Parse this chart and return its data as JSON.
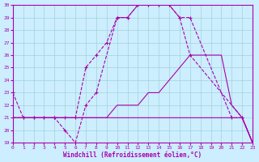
{
  "xlabel": "Windchill (Refroidissement éolien,°C)",
  "xlim": [
    0,
    23
  ],
  "ylim": [
    19,
    30
  ],
  "yticks": [
    19,
    20,
    21,
    22,
    23,
    24,
    25,
    26,
    27,
    28,
    29,
    30
  ],
  "xticks": [
    0,
    1,
    2,
    3,
    4,
    5,
    6,
    7,
    8,
    9,
    10,
    11,
    12,
    13,
    14,
    15,
    16,
    17,
    18,
    19,
    20,
    21,
    22,
    23
  ],
  "background_color": "#cceeff",
  "line_color": "#aa00aa",
  "line1_x": [
    0,
    1,
    2,
    3,
    4,
    5,
    6,
    7,
    8,
    10,
    11,
    12,
    13,
    14,
    15,
    16,
    17,
    21,
    22,
    23
  ],
  "line1_y": [
    23,
    21,
    21,
    21,
    21,
    20,
    19,
    22,
    23,
    29,
    29,
    30,
    30,
    30,
    30,
    29,
    29,
    21,
    21,
    19
  ],
  "line2_x": [
    0,
    1,
    2,
    3,
    4,
    5,
    6,
    7,
    8,
    9,
    10,
    11,
    12,
    13,
    14,
    15,
    16,
    17,
    22,
    23
  ],
  "line2_y": [
    21,
    21,
    21,
    21,
    21,
    21,
    21,
    25,
    26,
    27,
    29,
    29,
    30,
    30,
    30,
    30,
    29,
    26,
    21,
    19
  ],
  "line3_x": [
    0,
    1,
    2,
    3,
    4,
    5,
    6,
    7,
    8,
    9,
    10,
    11,
    12,
    13,
    14,
    15,
    16,
    17,
    18,
    19,
    20,
    21,
    22,
    23
  ],
  "line3_y": [
    21,
    21,
    21,
    21,
    21,
    21,
    21,
    21,
    21,
    21,
    22,
    22,
    22,
    23,
    23,
    24,
    25,
    26,
    26,
    26,
    26,
    22,
    21,
    19
  ],
  "line4_x": [
    0,
    1,
    2,
    3,
    4,
    5,
    6,
    7,
    8,
    9,
    10,
    11,
    12,
    13,
    14,
    15,
    16,
    17,
    18,
    19,
    20,
    21,
    22,
    23
  ],
  "line4_y": [
    21,
    21,
    21,
    21,
    21,
    21,
    21,
    21,
    21,
    21,
    21,
    21,
    21,
    21,
    21,
    21,
    21,
    21,
    21,
    21,
    21,
    21,
    21,
    19
  ]
}
